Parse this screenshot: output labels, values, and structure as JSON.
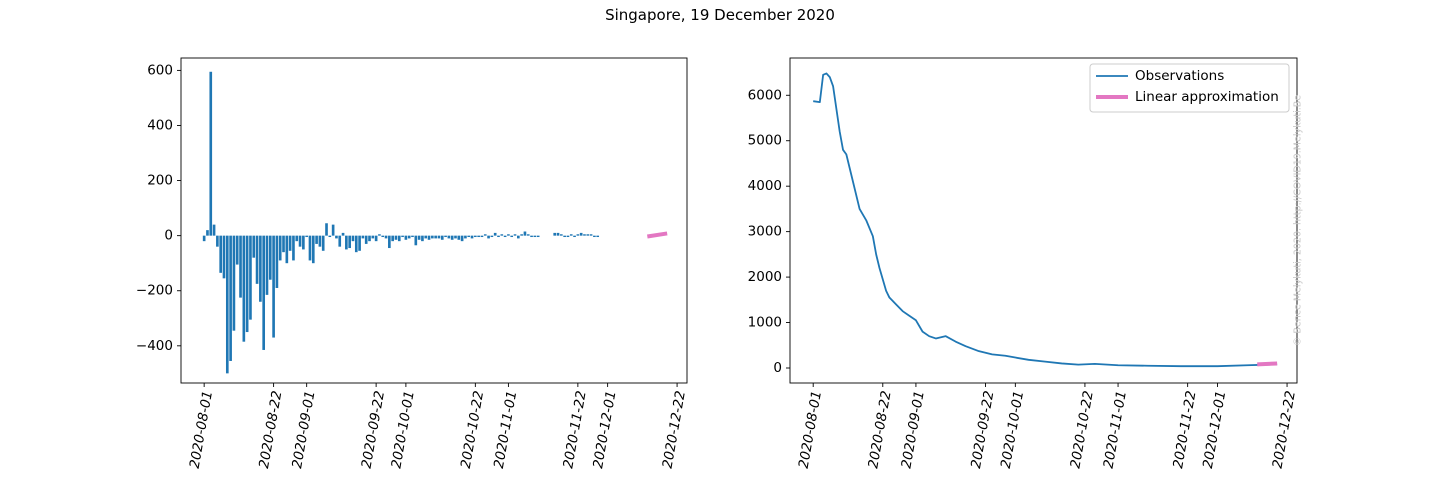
{
  "figure": {
    "title": "Singapore, 19 December 2020",
    "credit": "© Bence Melykuti, 2020. http://COVID19.Melykuti.Be"
  },
  "chart_data": [
    {
      "type": "bar",
      "title": "",
      "xlabel": "",
      "ylabel": "",
      "x_ticks": [
        "2020-08-01",
        "2020-08-22",
        "2020-09-01",
        "2020-09-22",
        "2020-10-01",
        "2020-10-22",
        "2020-11-01",
        "2020-11-22",
        "2020-12-01",
        "2020-12-22"
      ],
      "x_range": [
        "2020-07-25",
        "2020-12-25"
      ],
      "y_ticks": [
        -400,
        -200,
        0,
        200,
        400,
        600
      ],
      "ylim": [
        -535,
        645
      ],
      "bar_color": "#1f77b4",
      "values": [
        -20,
        20,
        595,
        40,
        -40,
        -135,
        -155,
        -500,
        -455,
        -345,
        -105,
        -225,
        -385,
        -350,
        -305,
        -80,
        -175,
        -240,
        -415,
        -215,
        -160,
        -370,
        -190,
        -90,
        -60,
        -100,
        -55,
        -90,
        -20,
        -40,
        -50,
        -5,
        -90,
        -100,
        -30,
        -40,
        -55,
        45,
        -5,
        40,
        -10,
        -40,
        10,
        -50,
        -45,
        -20,
        -60,
        -55,
        -10,
        -30,
        -20,
        -10,
        -20,
        5,
        -5,
        -10,
        -45,
        -20,
        -15,
        -20,
        -5,
        -15,
        -10,
        -5,
        -35,
        -15,
        -20,
        -10,
        -15,
        -10,
        -10,
        -10,
        -15,
        -5,
        -10,
        -15,
        -10,
        -15,
        -20,
        -10,
        -5,
        -10,
        -5,
        -5,
        -5,
        5,
        -10,
        -5,
        10,
        -5,
        5,
        -5,
        5,
        -5,
        5,
        -10,
        5,
        15,
        5,
        -5,
        -5,
        -5,
        null,
        null,
        null,
        null,
        10,
        10,
        5,
        -5,
        -5,
        5,
        -5,
        5,
        10,
        5,
        5,
        5,
        -5,
        -5,
        null
      ],
      "series": [
        {
          "name": "Linear approximation",
          "color": "#e377c2",
          "x": [
            "2020-12-13",
            "2020-12-19"
          ],
          "y": [
            -3,
            8
          ]
        }
      ]
    },
    {
      "type": "line",
      "title": "",
      "xlabel": "",
      "ylabel": "",
      "x_ticks": [
        "2020-08-01",
        "2020-08-22",
        "2020-09-01",
        "2020-09-22",
        "2020-10-01",
        "2020-10-22",
        "2020-11-01",
        "2020-11-22",
        "2020-12-01",
        "2020-12-22"
      ],
      "x_range": [
        "2020-07-25",
        "2020-12-25"
      ],
      "y_ticks": [
        0,
        1000,
        2000,
        3000,
        4000,
        5000,
        6000
      ],
      "ylim": [
        -330,
        6820
      ],
      "legend": "top-right",
      "series": [
        {
          "name": "Observations",
          "color": "#1f77b4",
          "x": [
            "2020-08-01",
            "2020-08-03",
            "2020-08-04",
            "2020-08-05",
            "2020-08-06",
            "2020-08-07",
            "2020-08-09",
            "2020-08-10",
            "2020-08-11",
            "2020-08-12",
            "2020-08-13",
            "2020-08-15",
            "2020-08-17",
            "2020-08-19",
            "2020-08-20",
            "2020-08-21",
            "2020-08-23",
            "2020-08-24",
            "2020-08-26",
            "2020-08-28",
            "2020-08-30",
            "2020-09-01",
            "2020-09-03",
            "2020-09-05",
            "2020-09-07",
            "2020-09-10",
            "2020-09-13",
            "2020-09-16",
            "2020-09-20",
            "2020-09-24",
            "2020-09-28",
            "2020-10-01",
            "2020-10-05",
            "2020-10-10",
            "2020-10-15",
            "2020-10-20",
            "2020-10-25",
            "2020-11-01",
            "2020-11-10",
            "2020-11-20",
            "2020-12-01",
            "2020-12-10",
            "2020-12-19"
          ],
          "y": [
            5870,
            5850,
            6450,
            6480,
            6400,
            6200,
            5200,
            4800,
            4700,
            4400,
            4100,
            3500,
            3250,
            2900,
            2500,
            2200,
            1700,
            1550,
            1400,
            1250,
            1150,
            1050,
            800,
            700,
            650,
            700,
            580,
            480,
            370,
            300,
            270,
            230,
            180,
            140,
            100,
            75,
            90,
            60,
            50,
            40,
            40,
            60,
            80
          ]
        },
        {
          "name": "Linear approximation",
          "color": "#e377c2",
          "x": [
            "2020-12-13",
            "2020-12-19"
          ],
          "y": [
            80,
            100
          ]
        }
      ]
    }
  ]
}
